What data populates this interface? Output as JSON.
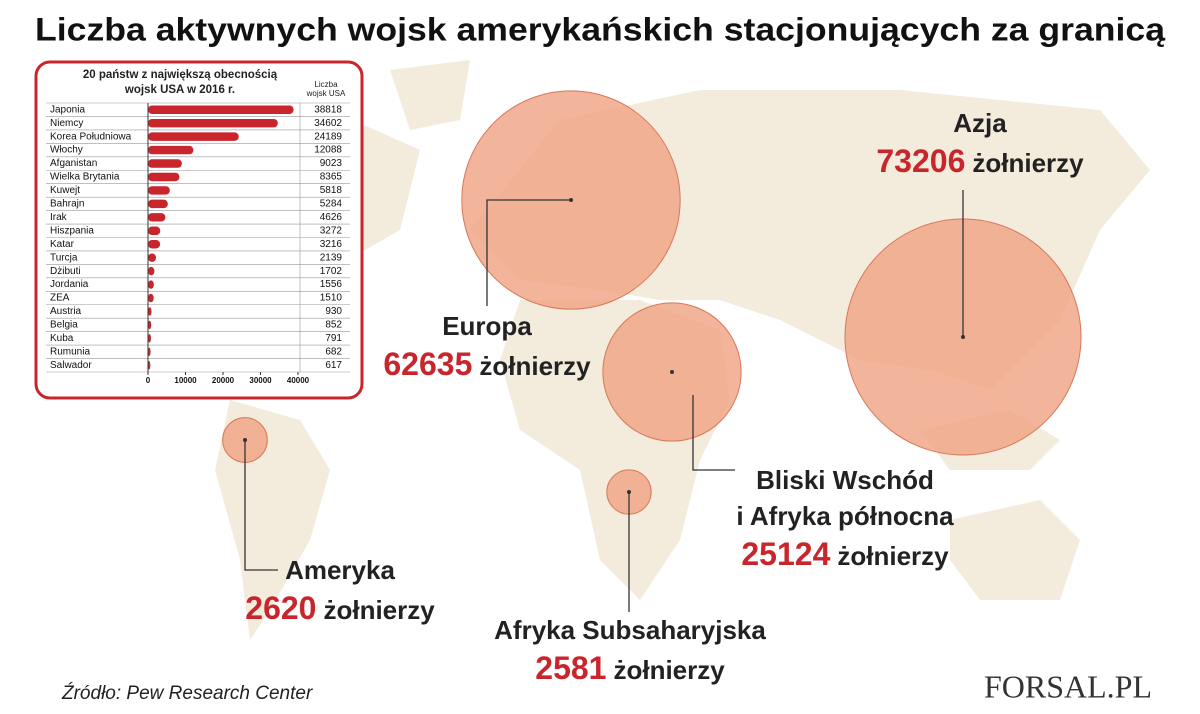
{
  "title": "Liczba aktywnych wojsk amerykańskich stacjonujących za granicą",
  "source": "Źródło:  Pew Research Center",
  "logo": "FORSAL.PL",
  "chart_data": [
    {
      "type": "bubble",
      "unit": "żołnierzy",
      "categories": [
        "Azja",
        "Europa",
        "Bliski Wschód\ni Afryka północna",
        "Ameryka",
        "Afryka Subsaharyjska"
      ],
      "values": [
        73206,
        62635,
        25124,
        2620,
        2581
      ],
      "color": "#f0a788"
    },
    {
      "type": "bar",
      "orientation": "horizontal",
      "title": "20 państw z największą obecnością\nwojsk USA w 2016 r.",
      "value_header": "Liczba\nwojsk USA",
      "categories": [
        "Japonia",
        "Niemcy",
        "Korea Południowa",
        "Włochy",
        "Afganistan",
        "Wielka Brytania",
        "Kuwejt",
        "Bahrajn",
        "Irak",
        "Hiszpania",
        "Katar",
        "Turcja",
        "Dżibuti",
        "Jordania",
        "ZEA",
        "Austria",
        "Belgia",
        "Kuba",
        "Rumunia",
        "Salwador"
      ],
      "values": [
        38818,
        34602,
        24189,
        12088,
        9023,
        8365,
        5818,
        5284,
        4626,
        3272,
        3216,
        2139,
        1702,
        1556,
        1510,
        930,
        852,
        791,
        682,
        617
      ],
      "color": "#c8252c",
      "xlim": [
        0,
        40000
      ],
      "xticks": [
        0,
        10000,
        20000,
        30000,
        40000
      ]
    }
  ]
}
